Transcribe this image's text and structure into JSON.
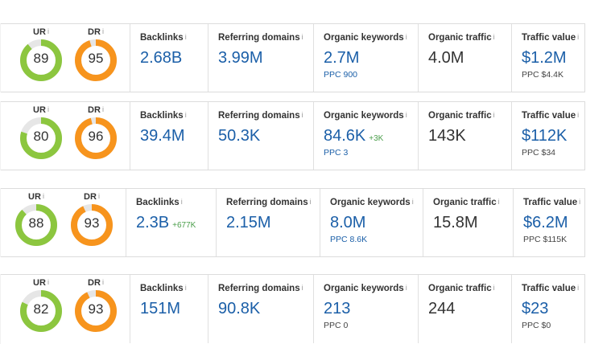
{
  "info_glyph": "i",
  "rows": [
    {
      "ur": {
        "label": "UR",
        "value": "89"
      },
      "dr": {
        "label": "DR",
        "value": "95"
      },
      "backlinks": {
        "label": "Backlinks",
        "value": "2.68B",
        "delta": ""
      },
      "referring_domains": {
        "label": "Referring domains",
        "value": "3.99M"
      },
      "organic_keywords": {
        "label": "Organic keywords",
        "value": "2.7M",
        "delta": "",
        "sub": "PPC 900"
      },
      "organic_traffic": {
        "label": "Organic traffic",
        "value": "4.0M"
      },
      "traffic_value": {
        "label": "Traffic value",
        "value": "$1.2M",
        "sub": "PPC $4.4K"
      }
    },
    {
      "ur": {
        "label": "UR",
        "value": "80"
      },
      "dr": {
        "label": "DR",
        "value": "96"
      },
      "backlinks": {
        "label": "Backlinks",
        "value": "39.4M",
        "delta": ""
      },
      "referring_domains": {
        "label": "Referring domains",
        "value": "50.3K"
      },
      "organic_keywords": {
        "label": "Organic keywords",
        "value": "84.6K",
        "delta": "+3K",
        "sub": "PPC 3"
      },
      "organic_traffic": {
        "label": "Organic traffic",
        "value": "143K"
      },
      "traffic_value": {
        "label": "Traffic value",
        "value": "$112K",
        "sub": "PPC $34"
      }
    },
    {
      "ur": {
        "label": "UR",
        "value": "88"
      },
      "dr": {
        "label": "DR",
        "value": "93"
      },
      "backlinks": {
        "label": "Backlinks",
        "value": "2.3B",
        "delta": "+677K"
      },
      "referring_domains": {
        "label": "Referring domains",
        "value": "2.15M"
      },
      "organic_keywords": {
        "label": "Organic keywords",
        "value": "8.0M",
        "delta": "",
        "sub": "PPC 8.6K"
      },
      "organic_traffic": {
        "label": "Organic traffic",
        "value": "15.8M"
      },
      "traffic_value": {
        "label": "Traffic value",
        "value": "$6.2M",
        "sub": "PPC $115K"
      }
    },
    {
      "ur": {
        "label": "UR",
        "value": "82"
      },
      "dr": {
        "label": "DR",
        "value": "93"
      },
      "backlinks": {
        "label": "Backlinks",
        "value": "151M",
        "delta": ""
      },
      "referring_domains": {
        "label": "Referring domains",
        "value": "90.8K"
      },
      "organic_keywords": {
        "label": "Organic keywords",
        "value": "213",
        "delta": "",
        "sub": "PPC 0"
      },
      "organic_traffic": {
        "label": "Organic traffic",
        "value": "244"
      },
      "traffic_value": {
        "label": "Traffic value",
        "value": "$23",
        "sub": "PPC $0"
      }
    }
  ],
  "colors": {
    "ur": "#8cc63f",
    "dr": "#f7941d",
    "track": "#e6e6e6",
    "link": "#1b5fa8",
    "delta": "#4b9e4b"
  }
}
